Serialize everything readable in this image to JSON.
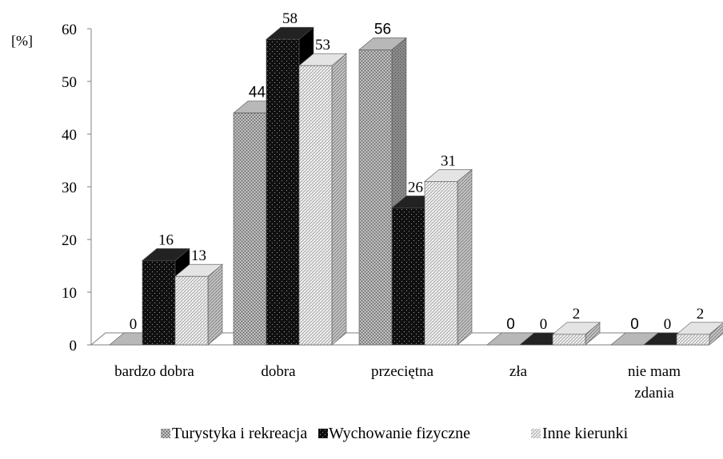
{
  "chart_data": {
    "type": "bar",
    "style": "3d-clustered-column",
    "ylabel": "[%]",
    "ylim": [
      0,
      60
    ],
    "yticks": [
      "0",
      "10",
      "20",
      "30",
      "40",
      "50",
      "60"
    ],
    "grid": false,
    "legend_position": "bottom",
    "categories": [
      [
        "bardzo dobra"
      ],
      [
        "dobra"
      ],
      [
        "przeciętna"
      ],
      [
        "zła"
      ],
      [
        "nie mam",
        "zdania"
      ]
    ],
    "series": [
      {
        "name": "Turystyka i rekreacja",
        "values": [
          0,
          44,
          56,
          0,
          0
        ],
        "labels": [
          "0",
          "44",
          "56",
          "0",
          "0"
        ],
        "color": "#9a9a9a",
        "pattern": "dotted-grey"
      },
      {
        "name": "Wychowanie fizyczne",
        "values": [
          16,
          58,
          26,
          0,
          0
        ],
        "labels": [
          "16",
          "58",
          "26",
          "0",
          "0"
        ],
        "color": "#111111",
        "pattern": "dotted-black"
      },
      {
        "name": "Inne kierunki",
        "values": [
          13,
          53,
          31,
          2,
          2
        ],
        "labels": [
          "13",
          "53",
          "31",
          "2",
          "2"
        ],
        "color": "#d9d9d9",
        "pattern": "light-hatched"
      }
    ]
  }
}
